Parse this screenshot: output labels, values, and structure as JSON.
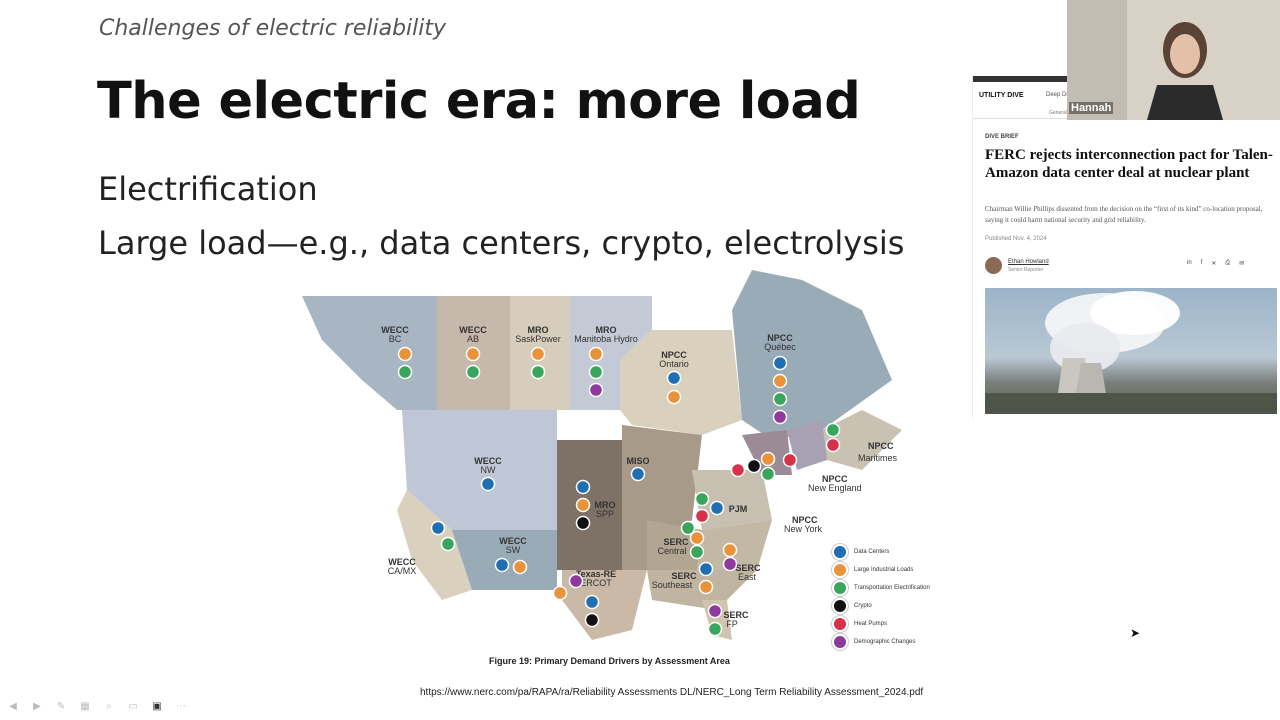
{
  "slide": {
    "subtitle": "Challenges of electric reliability",
    "title": "The electric era: more load",
    "bullets": [
      "Electrification",
      "Large load—e.g., data centers, crypto, electrolysis"
    ],
    "figure_caption": "Figure 19: Primary Demand Drivers by Assessment Area",
    "source_url": "https://www.nerc.com/pa/RAPA/ra/Reliability Assessments DL/NERC_Long Term Reliability Assessment_2024.pdf"
  },
  "map": {
    "regions": [
      {
        "name": "WECC",
        "sub": "BC"
      },
      {
        "name": "WECC",
        "sub": "AB"
      },
      {
        "name": "MRO",
        "sub": "SaskPower"
      },
      {
        "name": "MRO",
        "sub": "Manitoba Hydro"
      },
      {
        "name": "NPCC",
        "sub": "Ontario"
      },
      {
        "name": "NPCC",
        "sub": "Québec"
      },
      {
        "name": "NPCC",
        "sub": "Maritimes"
      },
      {
        "name": "NPCC",
        "sub": "New England"
      },
      {
        "name": "NPCC",
        "sub": "New York"
      },
      {
        "name": "WECC",
        "sub": "NW"
      },
      {
        "name": "MISO",
        "sub": ""
      },
      {
        "name": "MRO",
        "sub": "SPP"
      },
      {
        "name": "PJM",
        "sub": ""
      },
      {
        "name": "WECC",
        "sub": "CA/MX"
      },
      {
        "name": "WECC",
        "sub": "SW"
      },
      {
        "name": "SERC",
        "sub": "Central"
      },
      {
        "name": "SERC",
        "sub": "East"
      },
      {
        "name": "SERC",
        "sub": "Southeast"
      },
      {
        "name": "Texas-RE",
        "sub": "ERCOT"
      },
      {
        "name": "SERC",
        "sub": "FP"
      }
    ],
    "legend": [
      {
        "label": "Data Centers",
        "color": "#1f6fb2"
      },
      {
        "label": "Large Industrial Loads",
        "color": "#e8923a"
      },
      {
        "label": "Transportation Electrification",
        "color": "#3aa55c"
      },
      {
        "label": "Crypto",
        "color": "#111111"
      },
      {
        "label": "Heat Pumps",
        "color": "#d6334a"
      },
      {
        "label": "Demographic Changes",
        "color": "#8e3a9c"
      }
    ]
  },
  "article": {
    "logo": "UTILITY DIVE",
    "nav_label": "Deep Dive",
    "nav_sub": "General",
    "section": "DIVE BRIEF",
    "headline": "FERC rejects interconnection pact for Talen-Amazon data center deal at nuclear plant",
    "dek": "Chairman Willie Phillips dissented from the decision on the “first of its kind” co-location proposal, saying it could harm national security and grid reliability.",
    "published": "Published Nov. 4, 2024",
    "author": "Ethan Howland",
    "author_role": "Senior Reporter",
    "share_icons": [
      "in",
      "f",
      "X",
      "print",
      "email"
    ]
  },
  "webcam": {
    "name": "Hannah"
  },
  "toolbar": {
    "buttons": [
      "prev-icon",
      "next-icon",
      "pen-icon",
      "slides-icon",
      "zoom-icon",
      "subtitles-icon",
      "camera-icon",
      "more-icon"
    ]
  }
}
